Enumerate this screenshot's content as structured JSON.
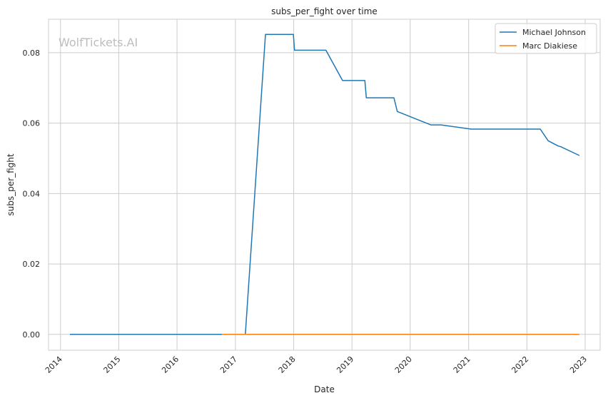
{
  "chart_data": {
    "type": "line",
    "title": "subs_per_fight over time",
    "xlabel": "Date",
    "ylabel": "subs_per_fight",
    "watermark": "WolfTickets.AI",
    "grid": true,
    "legend_position": "top-right",
    "xlim": [
      "2013-10-18",
      "2023-04-05"
    ],
    "ylim": [
      -0.0045,
      0.0895
    ],
    "x_ticks": [
      "2014",
      "2015",
      "2016",
      "2017",
      "2018",
      "2019",
      "2020",
      "2021",
      "2022",
      "2023"
    ],
    "y_ticks": [
      "0.00",
      "0.02",
      "0.04",
      "0.06",
      "0.08"
    ],
    "y_tick_values": [
      0.0,
      0.02,
      0.04,
      0.06,
      0.08
    ],
    "series": [
      {
        "name": "Michael Johnson",
        "color": "#1f77b4",
        "x": [
          "2014-03-01",
          "2016-06-01",
          "2017-03-04",
          "2017-07-08",
          "2017-12-30",
          "2018-01-06",
          "2018-07-22",
          "2018-11-03",
          "2019-03-23",
          "2019-04-01",
          "2019-09-21",
          "2019-10-12",
          "2020-05-09",
          "2020-07-12",
          "2021-01-16",
          "2021-06-01",
          "2022-03-26",
          "2022-05-14",
          "2022-07-16",
          "2022-08-01",
          "2022-11-26"
        ],
        "y": [
          0.0,
          0.0,
          0.0,
          0.0852,
          0.0852,
          0.0807,
          0.0807,
          0.0721,
          0.0721,
          0.0672,
          0.0672,
          0.0633,
          0.0595,
          0.0595,
          0.0583,
          0.0583,
          0.0583,
          0.055,
          0.0535,
          0.0533,
          0.0508
        ]
      },
      {
        "name": "Marc Diakiese",
        "color": "#ff7f0e",
        "x": [
          "2016-10-08",
          "2022-11-26"
        ],
        "y": [
          0.0,
          0.0
        ]
      }
    ]
  }
}
